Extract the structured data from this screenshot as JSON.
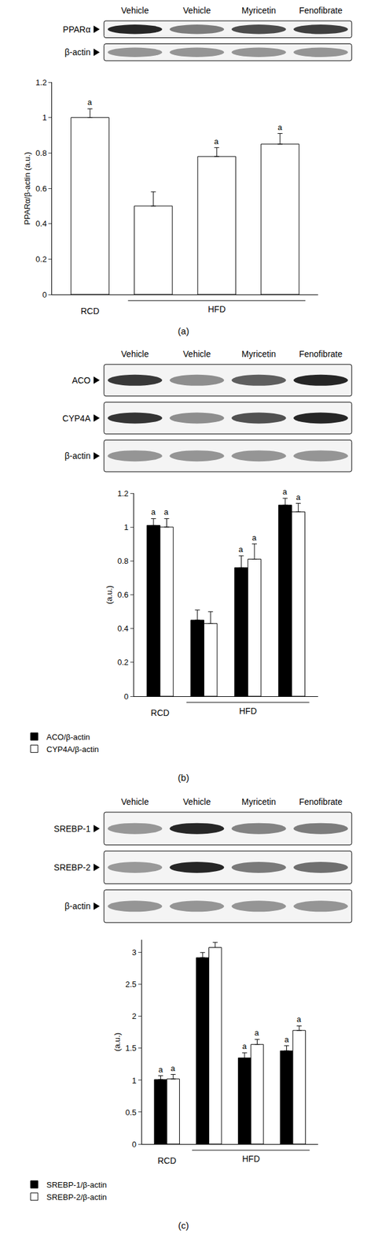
{
  "chart_data": [
    {
      "type": "bar",
      "panel_label": "(a)",
      "blot": {
        "lanes": [
          "Vehicle",
          "Vehicle",
          "Myricetin",
          "Fenofibrate"
        ],
        "rows": [
          "PPARα",
          "β-actin"
        ]
      },
      "categories": [
        "RCD",
        null,
        null,
        null
      ],
      "x_groups": [
        {
          "label": "HFD",
          "from": 1,
          "to": 3
        }
      ],
      "y_label": "PPARα/β-actin (a.u.)",
      "values": [
        1.0,
        0.5,
        0.78,
        0.85
      ],
      "errors": [
        0.05,
        0.08,
        0.05,
        0.06
      ],
      "significance": [
        "a",
        null,
        "a",
        "a"
      ],
      "color": "#ffffff",
      "ylim": [
        0,
        1.2
      ],
      "yticks": [
        0,
        0.2,
        0.4,
        0.6,
        0.8,
        1,
        1.2
      ]
    },
    {
      "type": "bar",
      "panel_label": "(b)",
      "blot": {
        "lanes": [
          "Vehicle",
          "Vehicle",
          "Myricetin",
          "Fenofibrate"
        ],
        "rows": [
          "ACO",
          "CYP4A",
          "β-actin"
        ]
      },
      "categories": [
        "RCD",
        null,
        null,
        null
      ],
      "x_groups": [
        {
          "label": "HFD",
          "from": 1,
          "to": 3
        }
      ],
      "y_label": "(a.u.)",
      "series": [
        {
          "name": "ACO/β-actin",
          "color": "#000000",
          "values": [
            1.01,
            0.45,
            0.76,
            1.13
          ],
          "errors": [
            0.04,
            0.06,
            0.07,
            0.04
          ],
          "significance": [
            "a",
            null,
            "a",
            "a"
          ]
        },
        {
          "name": "CYP4A/β-actin",
          "color": "#ffffff",
          "values": [
            1.0,
            0.43,
            0.81,
            1.09
          ],
          "errors": [
            0.05,
            0.07,
            0.09,
            0.05
          ],
          "significance": [
            "a",
            null,
            "a",
            "a"
          ]
        }
      ],
      "ylim": [
        0,
        1.2
      ],
      "yticks": [
        0,
        0.2,
        0.4,
        0.6,
        0.8,
        1,
        1.2
      ]
    },
    {
      "type": "bar",
      "panel_label": "(c)",
      "blot": {
        "lanes": [
          "Vehicle",
          "Vehicle",
          "Myricetin",
          "Fenofibrate"
        ],
        "rows": [
          "SREBP-1",
          "SREBP-2",
          "β-actin"
        ]
      },
      "categories": [
        "RCD",
        null,
        null,
        null
      ],
      "x_groups": [
        {
          "label": "HFD",
          "from": 1,
          "to": 3
        }
      ],
      "y_label": "(a.u.)",
      "series": [
        {
          "name": "SREBP-1/β-actin",
          "color": "#000000",
          "values": [
            1.01,
            2.92,
            1.35,
            1.46
          ],
          "errors": [
            0.06,
            0.08,
            0.08,
            0.08
          ],
          "significance": [
            "a",
            null,
            "a",
            "a"
          ]
        },
        {
          "name": "SREBP-2/β-actin",
          "color": "#ffffff",
          "values": [
            1.02,
            3.08,
            1.56,
            1.78
          ],
          "errors": [
            0.07,
            0.08,
            0.08,
            0.07
          ],
          "significance": [
            "a",
            null,
            "a",
            "a"
          ]
        }
      ],
      "ylim": [
        0,
        3.2
      ],
      "yticks": [
        0,
        0.5,
        1,
        1.5,
        2,
        2.5,
        3
      ]
    }
  ]
}
